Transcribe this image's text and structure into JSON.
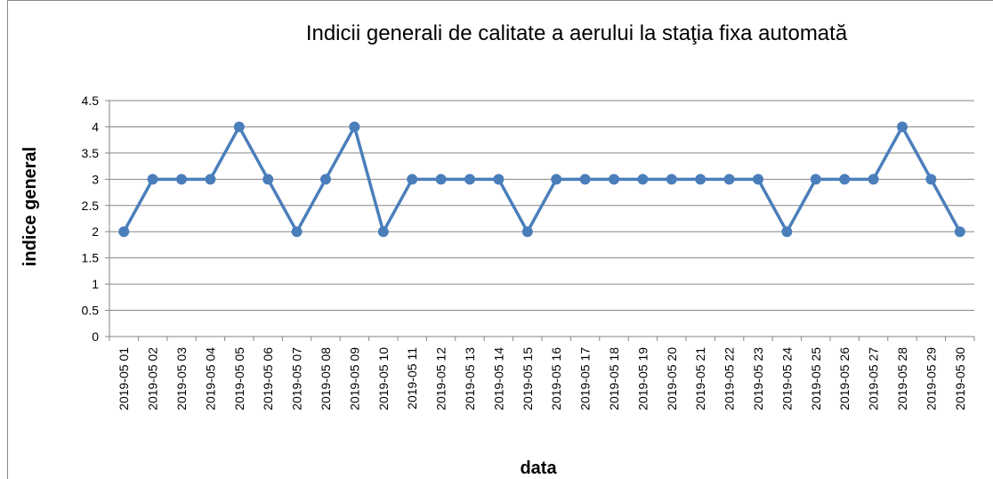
{
  "chart_data": {
    "type": "line",
    "title": "Indicii generali de calitate a aerului la staţia fixa automată",
    "x_label": "data",
    "y_label": "indice general",
    "categories": [
      "2019-05 01",
      "2019-05 02",
      "2019-05 03",
      "2019-05 04",
      "2019-05 05",
      "2019-05 06",
      "2019-05 07",
      "2019-05 08",
      "2019-05 09",
      "2019-05 10",
      "2019-05 11",
      "2019-05 12",
      "2019-05 13",
      "2019-05 14",
      "2019-05 15",
      "2019-05 16",
      "2019-05 17",
      "2019-05 18",
      "2019-05 19",
      "2019-05 20",
      "2019-05 21",
      "2019-05 22",
      "2019-05 23",
      "2019-05 24",
      "2019-05 25",
      "2019-05 26",
      "2019-05 27",
      "2019-05 28",
      "2019-05 29",
      "2019-05 30"
    ],
    "values": [
      2,
      3,
      3,
      3,
      4,
      3,
      2,
      3,
      4,
      2,
      3,
      3,
      3,
      3,
      2,
      3,
      3,
      3,
      3,
      3,
      3,
      3,
      3,
      2,
      3,
      3,
      3,
      4,
      3,
      2
    ],
    "color": "#4a7ebb",
    "ylim": [
      0,
      4.5
    ],
    "yticks": [
      0,
      0.5,
      1,
      1.5,
      2,
      2.5,
      3,
      3.5,
      4,
      4.5
    ],
    "grid": true
  }
}
